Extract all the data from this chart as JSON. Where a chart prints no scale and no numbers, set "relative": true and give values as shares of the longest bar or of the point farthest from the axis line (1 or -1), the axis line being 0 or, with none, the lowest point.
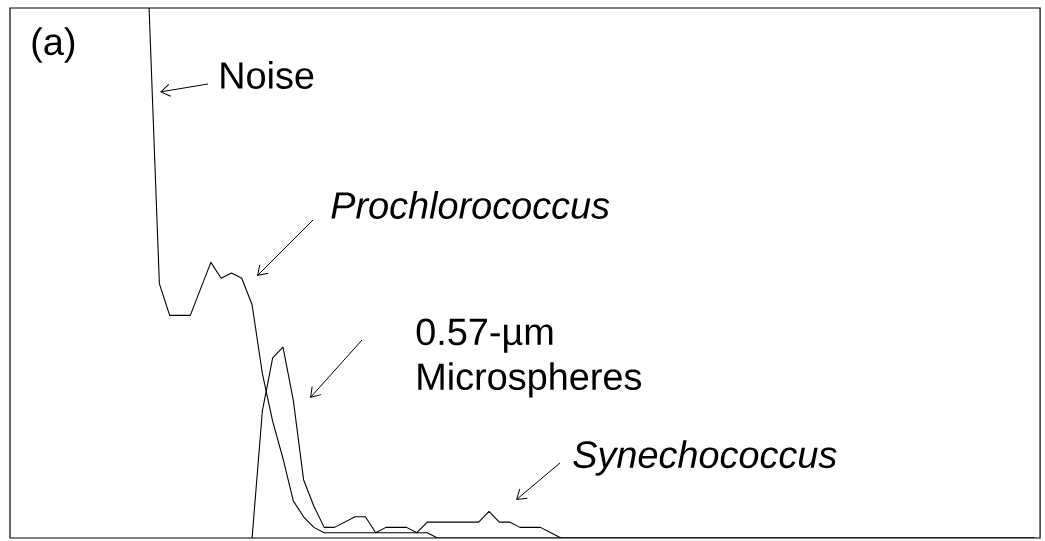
{
  "chart_data": {
    "type": "line",
    "relative": true,
    "categories": [
      null,
      null,
      null,
      null,
      null,
      null,
      null,
      null,
      null,
      null,
      null,
      null,
      null,
      null,
      null,
      null,
      null,
      null,
      null,
      null,
      null,
      null,
      null,
      null,
      null,
      null,
      null,
      null,
      null,
      null,
      null,
      null,
      null,
      null,
      null,
      null,
      null,
      null,
      null,
      null,
      null,
      null,
      null,
      null,
      null,
      null,
      null,
      null,
      null,
      null,
      null,
      null,
      null,
      null,
      null,
      null,
      null,
      null,
      null,
      null,
      null,
      null,
      null,
      null,
      null,
      null,
      null,
      null,
      null,
      null,
      null,
      null,
      null,
      null,
      null,
      null,
      null,
      null,
      null,
      null,
      null,
      null,
      null,
      null,
      null,
      null,
      null,
      null,
      null,
      null,
      null,
      null,
      null,
      null,
      null,
      null,
      null,
      null,
      null,
      null
    ],
    "series": [
      {
        "color": "#000000",
        "values": [
          null,
          null,
          null,
          null,
          null,
          null,
          null,
          null,
          null,
          null,
          null,
          null,
          null,
          1.0,
          0.48,
          0.42,
          0.42,
          0.42,
          0.47,
          0.52,
          0.49,
          0.5,
          0.49,
          0.44,
          0.31,
          0.22,
          0.15,
          0.07,
          0.04,
          0.02,
          0.01,
          0.01,
          0.01,
          0.01,
          0.01,
          0.01,
          0.01,
          0.01,
          0.01,
          0.01,
          0.01,
          0,
          0,
          0,
          0,
          0,
          0,
          0,
          0,
          0,
          0,
          0,
          0,
          0,
          0,
          0,
          0,
          0,
          0,
          0,
          0,
          0,
          0,
          0,
          0,
          0,
          0,
          0,
          0,
          0,
          0,
          0,
          0,
          0,
          0,
          0,
          0,
          0,
          0,
          0,
          0,
          0,
          0,
          0,
          0,
          0,
          0,
          0,
          0,
          0,
          0,
          0,
          0,
          0,
          0,
          0,
          0,
          0,
          0,
          0
        ]
      },
      {
        "color": "#000000",
        "values": [
          null,
          null,
          null,
          null,
          null,
          null,
          null,
          null,
          null,
          null,
          null,
          null,
          null,
          null,
          null,
          null,
          null,
          null,
          null,
          null,
          null,
          null,
          null,
          0,
          0.24,
          0.34,
          0.36,
          0.26,
          0.11,
          0.06,
          0.02,
          0.02,
          0.03,
          0.04,
          0.04,
          0.01,
          0.02,
          0.02,
          0.02,
          0.01,
          0.03,
          0.03,
          0.03,
          0.03,
          0.03,
          0.03,
          0.05,
          0.03,
          0.03,
          0.02,
          0.02,
          0.02,
          0.01,
          0,
          0,
          0,
          0,
          0,
          0,
          0,
          0,
          0,
          0,
          0,
          0,
          0,
          0,
          0,
          0,
          0,
          0,
          0,
          0,
          0,
          0,
          0,
          0,
          0,
          0,
          0,
          0,
          0,
          0,
          0,
          0,
          0,
          0,
          0,
          0,
          0,
          0,
          0,
          0,
          0,
          0,
          0,
          0,
          0,
          0,
          0
        ]
      }
    ],
    "annotations": [
      "(a)",
      "Noise",
      "Prochlorococcus",
      "0.57-µm Microspheres",
      "Synechococcus"
    ]
  }
}
